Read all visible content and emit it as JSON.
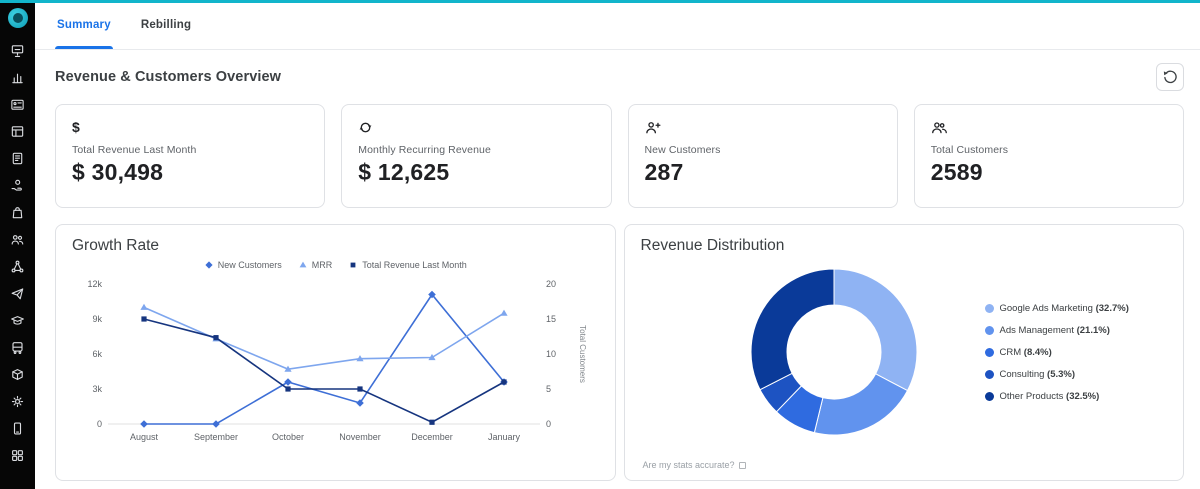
{
  "accent_color": "#12b5cb",
  "sidebar": {
    "items": [
      "presentation",
      "analytics",
      "card",
      "table",
      "ledger",
      "payouts",
      "orders",
      "customers",
      "network",
      "send",
      "academy",
      "transport",
      "products",
      "insights",
      "mobile",
      "apps"
    ]
  },
  "tabs": [
    {
      "label": "Summary",
      "active": true
    },
    {
      "label": "Rebilling",
      "active": false
    }
  ],
  "header": {
    "title": "Revenue & Customers Overview",
    "refresh_icon": "history-icon"
  },
  "cards": [
    {
      "icon": "dollar-icon",
      "icon_glyph": "$",
      "label": "Total Revenue Last Month",
      "value": "$ 30,498"
    },
    {
      "icon": "autorenew-icon",
      "label": "Monthly Recurring Revenue",
      "value": "$ 12,625"
    },
    {
      "icon": "person-add-icon",
      "label": "New Customers",
      "value": "287"
    },
    {
      "icon": "group-icon",
      "label": "Total Customers",
      "value": "2589"
    }
  ],
  "chart_data": [
    {
      "type": "line",
      "title": "Growth Rate",
      "x": [
        "August",
        "September",
        "October",
        "November",
        "December",
        "January"
      ],
      "left_axis": {
        "max": 12000,
        "ticks": [
          [
            0,
            "0"
          ],
          [
            3000,
            "3k"
          ],
          [
            6000,
            "6k"
          ],
          [
            9000,
            "9k"
          ],
          [
            12000,
            "12k"
          ]
        ]
      },
      "right_axis": {
        "label": "Total Customers",
        "max": 20,
        "ticks": [
          [
            0,
            "0"
          ],
          [
            5,
            "5"
          ],
          [
            10,
            "10"
          ],
          [
            15,
            "15"
          ],
          [
            20,
            "20"
          ]
        ]
      },
      "legend_position": "top",
      "grid": false,
      "series": [
        {
          "name": "New Customers",
          "color": "#3e6fd6",
          "axis": "right",
          "marker": "diamond",
          "values": [
            0,
            0,
            6,
            3,
            18.5,
            6
          ]
        },
        {
          "name": "MRR",
          "color": "#7ea6ee",
          "axis": "left",
          "marker": "triangle",
          "values": [
            10000,
            7300,
            4700,
            5600,
            5700,
            9500
          ]
        },
        {
          "name": "Total Revenue Last Month",
          "color": "#16357f",
          "axis": "left",
          "marker": "square",
          "values": [
            9000,
            7400,
            3000,
            3000,
            150,
            3600
          ]
        }
      ]
    },
    {
      "type": "pie",
      "title": "Revenue Distribution",
      "donut": true,
      "legend_position": "right",
      "slices": [
        {
          "label": "Google Ads Marketing",
          "pct": 32.7,
          "color": "#8fb3f3"
        },
        {
          "label": "Ads Management",
          "pct": 21.1,
          "color": "#6193ee"
        },
        {
          "label": "CRM",
          "pct": 8.4,
          "color": "#2f6be0"
        },
        {
          "label": "Consulting",
          "pct": 5.3,
          "color": "#1d53c2"
        },
        {
          "label": "Other Products",
          "pct": 32.5,
          "color": "#0a3a99"
        }
      ],
      "footnote": "Are my stats accurate?"
    }
  ]
}
